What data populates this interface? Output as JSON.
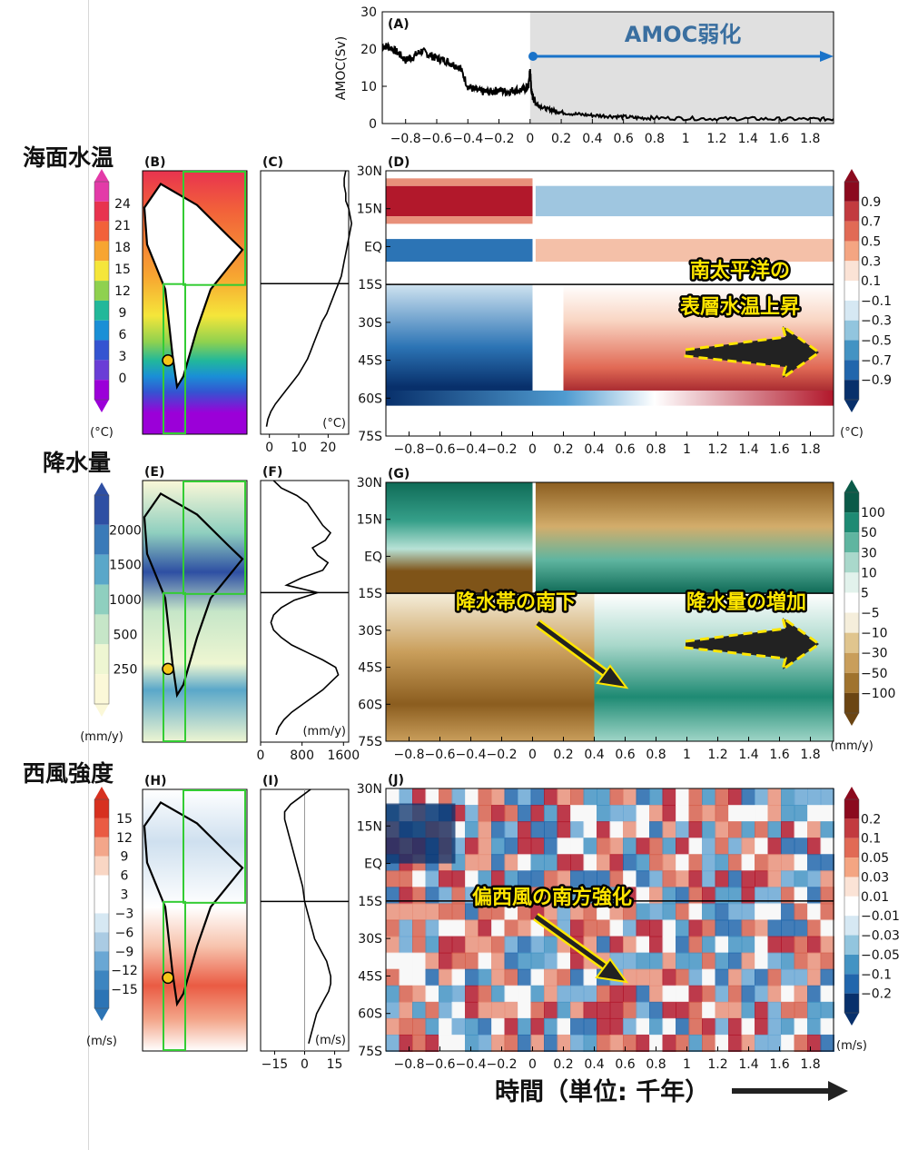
{
  "section_labels": {
    "sst": "海面水温",
    "precip": "降水量",
    "wind": "西風強度"
  },
  "time_axis": {
    "label": "時間（単位: 千年）"
  },
  "annotations": {
    "amoc_weakening": "AMOC弱化",
    "sst_warming_line1": "南太平洋の",
    "sst_warming_line2": "表層水温上昇",
    "rainband_shift": "降水帯の南下",
    "precip_increase": "降水量の増加",
    "westerly_shift": "偏西風の南方強化"
  },
  "colors": {
    "green_box": "#33cc33",
    "marker": "#f5c518",
    "amoc_shade": "#e0e0e0",
    "amoc_arrow": "#1a73c9",
    "amoc_text": "#3a6fa0",
    "annotation_text": "#ffe600"
  },
  "panels": {
    "A": "(A)",
    "B": "(B)",
    "C": "(C)",
    "D": "(D)",
    "E": "(E)",
    "F": "(F)",
    "G": "(G)",
    "H": "(H)",
    "I": "(I)",
    "J": "(J)"
  },
  "chart_data": [
    {
      "panel": "(A)",
      "type": "line",
      "ylabel": "AMOC(Sv)",
      "ylim": [
        0,
        30
      ],
      "yticks": [
        "0",
        "10",
        "20",
        "30"
      ],
      "xlim": [
        -0.95,
        1.95
      ],
      "xticks": [
        "−0.8",
        "−0.6",
        "−0.4",
        "−0.2",
        "0",
        "0.2",
        "0.4",
        "0.6",
        "0.8",
        "1",
        "1.2",
        "1.4",
        "1.6",
        "1.8"
      ],
      "shaded_region": [
        0,
        1.95
      ],
      "series": [
        {
          "x": [
            -0.95,
            -0.9,
            -0.85,
            -0.8,
            -0.75,
            -0.7,
            -0.65,
            -0.6,
            -0.55,
            -0.5,
            -0.45,
            -0.4,
            -0.35,
            -0.3,
            -0.25,
            -0.2,
            -0.15,
            -0.1,
            -0.05,
            -0.01,
            0.0,
            0.01,
            0.03,
            0.05,
            0.1,
            0.15,
            0.2,
            0.3,
            0.4,
            0.5,
            0.6,
            0.7,
            0.8,
            1.0,
            1.2,
            1.4,
            1.6,
            1.8,
            1.95
          ],
          "y": [
            21,
            20.5,
            19,
            17,
            18,
            19.5,
            18.5,
            17.5,
            17,
            16,
            15,
            10,
            9,
            8.5,
            8.5,
            9,
            8.5,
            9,
            9,
            10,
            14.5,
            8,
            6,
            5,
            4,
            3.5,
            3,
            2.5,
            2.2,
            2,
            1.8,
            1.5,
            1.5,
            1.4,
            1.3,
            1.3,
            1.2,
            1.2,
            1.2
          ]
        }
      ]
    },
    {
      "panel": "(B)",
      "type": "heatmap",
      "colorbar_ticks": [
        "0",
        "3",
        "6",
        "9",
        "12",
        "15",
        "18",
        "21",
        "24"
      ],
      "colorbar_unit": "(°C)",
      "colormap": [
        "#9b00d8",
        "#6a3dd6",
        "#3454d1",
        "#1a8fd6",
        "#22b89a",
        "#8fd14f",
        "#f5e63a",
        "#f7a531",
        "#f2613a",
        "#e8334f",
        "#e33aa8"
      ]
    },
    {
      "panel": "(C)",
      "type": "line",
      "xticks": [
        "0",
        "10",
        "20"
      ],
      "xlim": [
        -3,
        27
      ],
      "unit": "(°C)",
      "series": [
        {
          "lat": [
            30,
            27,
            24,
            21,
            18,
            15,
            12,
            9,
            6,
            3,
            0,
            -3,
            -6,
            -9,
            -12,
            -15,
            -18,
            -21,
            -24,
            -27,
            -30,
            -33,
            -36,
            -39,
            -42,
            -45,
            -48,
            -51,
            -54,
            -57,
            -60,
            -63,
            -66,
            -69,
            -72
          ],
          "value": [
            26,
            25.5,
            25.5,
            26,
            26,
            27,
            27.5,
            28,
            27.5,
            27,
            26.5,
            26,
            25.5,
            25,
            24.5,
            23.5,
            22.5,
            21.5,
            20.5,
            19.5,
            18,
            17,
            16,
            15,
            14,
            13,
            11.5,
            10,
            8,
            6,
            4,
            2,
            0.5,
            -0.5,
            -1
          ]
        }
      ]
    },
    {
      "panel": "(D)",
      "type": "heatmap",
      "yticks": [
        "30N",
        "15N",
        "EQ",
        "15S",
        "30S",
        "45S",
        "60S",
        "75S"
      ],
      "xticks": [
        "−0.8",
        "−0.6",
        "−0.4",
        "−0.2",
        "0",
        "0.2",
        "0.4",
        "0.6",
        "0.8",
        "1",
        "1.2",
        "1.4",
        "1.6",
        "1.8"
      ],
      "colorbar_ticks": [
        "0.9",
        "0.7",
        "0.5",
        "0.3",
        "0.1",
        "−0.1",
        "−0.3",
        "−0.5",
        "−0.7",
        "−0.9"
      ],
      "colorbar_unit": "(°C)"
    },
    {
      "panel": "(E)",
      "type": "heatmap",
      "colorbar_ticks": [
        "250",
        "500",
        "1000",
        "1500",
        "2000"
      ],
      "colorbar_unit": "(mm/y)"
    },
    {
      "panel": "(F)",
      "type": "line",
      "xticks": [
        "0",
        "800",
        "1600"
      ],
      "xlim": [
        0,
        1700
      ],
      "unit": "(mm/y)",
      "series": [
        {
          "lat": [
            30,
            27,
            24,
            21,
            18,
            15,
            12,
            9,
            6,
            3,
            0,
            -3,
            -6,
            -9,
            -12,
            -15,
            -18,
            -21,
            -24,
            -27,
            -30,
            -33,
            -36,
            -39,
            -42,
            -45,
            -48,
            -51,
            -54,
            -57,
            -60,
            -63,
            -66,
            -69,
            -72
          ],
          "value": [
            250,
            400,
            700,
            900,
            1000,
            1100,
            1200,
            1350,
            1250,
            1000,
            1100,
            1300,
            1200,
            800,
            500,
            1100,
            650,
            400,
            250,
            200,
            250,
            400,
            600,
            900,
            1200,
            1450,
            1500,
            1350,
            1200,
            1000,
            800,
            600,
            450,
            350,
            300
          ]
        }
      ]
    },
    {
      "panel": "(G)",
      "type": "heatmap",
      "yticks": [
        "30N",
        "15N",
        "EQ",
        "15S",
        "30S",
        "45S",
        "60S",
        "75S"
      ],
      "xticks": [
        "−0.8",
        "−0.6",
        "−0.4",
        "−0.2",
        "0",
        "0.2",
        "0.4",
        "0.6",
        "0.8",
        "1",
        "1.2",
        "1.4",
        "1.6",
        "1.8"
      ],
      "colorbar_ticks": [
        "100",
        "50",
        "30",
        "10",
        "5",
        "−5",
        "−10",
        "−30",
        "−50",
        "−100"
      ],
      "colorbar_unit": "(mm/y)"
    },
    {
      "panel": "(H)",
      "type": "heatmap",
      "colorbar_ticks": [
        "15",
        "12",
        "9",
        "6",
        "3",
        "−3",
        "−6",
        "−9",
        "−12",
        "−15"
      ],
      "colorbar_unit": "(m/s)"
    },
    {
      "panel": "(I)",
      "type": "line",
      "xticks": [
        "−15",
        "0",
        "15"
      ],
      "xlim": [
        -22,
        22
      ],
      "unit": "(m/s)",
      "series": [
        {
          "lat": [
            30,
            27,
            24,
            21,
            18,
            15,
            12,
            9,
            6,
            3,
            0,
            -3,
            -6,
            -9,
            -12,
            -15,
            -18,
            -21,
            -24,
            -27,
            -30,
            -33,
            -36,
            -39,
            -42,
            -45,
            -48,
            -51,
            -54,
            -57,
            -60,
            -63,
            -66,
            -69,
            -72
          ],
          "value": [
            3,
            -2,
            -7,
            -10,
            -10,
            -9,
            -8,
            -7,
            -6,
            -5,
            -4,
            -3,
            -2,
            -1,
            -0.5,
            0,
            1,
            2,
            3,
            4,
            5,
            7,
            9,
            11,
            12,
            13,
            13,
            12,
            10,
            8,
            6,
            5,
            4,
            3,
            2
          ]
        }
      ]
    },
    {
      "panel": "(J)",
      "type": "heatmap",
      "yticks": [
        "30N",
        "15N",
        "EQ",
        "15S",
        "30S",
        "45S",
        "60S",
        "75S"
      ],
      "xticks": [
        "−0.8",
        "−0.6",
        "−0.4",
        "−0.2",
        "0",
        "0.2",
        "0.4",
        "0.6",
        "0.8",
        "1",
        "1.2",
        "1.4",
        "1.6",
        "1.8"
      ],
      "colorbar_ticks": [
        "0.2",
        "0.1",
        "0.05",
        "0.03",
        "0.01",
        "−0.01",
        "−0.03",
        "−0.05",
        "−0.1",
        "−0.2"
      ],
      "colorbar_unit": "(m/s)"
    }
  ]
}
